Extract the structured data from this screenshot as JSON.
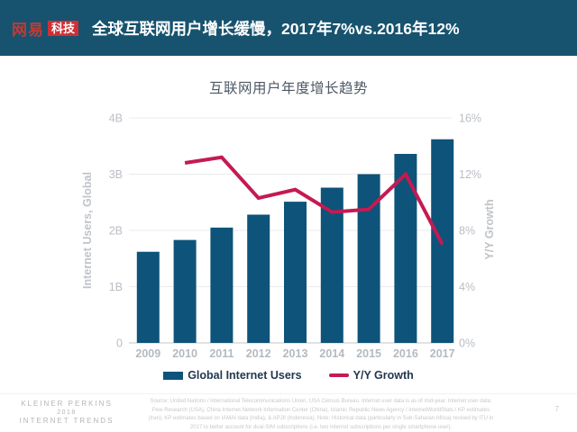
{
  "header": {
    "logo_brand": "网易",
    "logo_sub": "科技",
    "title": "全球互联网用户增长缓慢，2017年7%vs.2016年12%"
  },
  "chart_data": {
    "type": "bar",
    "title": "互联网用户年度增长趋势",
    "categories": [
      "2009",
      "2010",
      "2011",
      "2012",
      "2013",
      "2014",
      "2015",
      "2016",
      "2017"
    ],
    "series": [
      {
        "name": "Global Internet Users",
        "type": "bar",
        "axis": "left",
        "unit": "B",
        "values": [
          1.62,
          1.83,
          2.05,
          2.28,
          2.51,
          2.76,
          3.0,
          3.36,
          3.62
        ]
      },
      {
        "name": "Y/Y Growth",
        "type": "line",
        "axis": "right",
        "unit": "%",
        "values": [
          null,
          12.8,
          13.2,
          10.3,
          10.9,
          9.3,
          9.5,
          12.0,
          7.0
        ]
      }
    ],
    "left_axis": {
      "label": "Internet Users, Global",
      "ticks": [
        "0",
        "1B",
        "2B",
        "3B",
        "4B"
      ],
      "range": [
        0,
        4
      ]
    },
    "right_axis": {
      "label": "Y/Y Growth",
      "ticks": [
        "0%",
        "4%",
        "8%",
        "12%",
        "16%"
      ],
      "range": [
        0,
        16
      ]
    },
    "grid": true,
    "legend_position": "bottom",
    "colors": {
      "bar": "#0E5379",
      "line": "#C41A52"
    }
  },
  "legend": {
    "items": [
      {
        "label": "Global Internet Users"
      },
      {
        "label": "Y/Y Growth"
      }
    ]
  },
  "footer": {
    "brand_lines": [
      "KLEINER PERKINS",
      "2018",
      "INTERNET TRENDS"
    ],
    "source": "Source: United Nations / International Telecommunications Union, USA Census Bureau. Internet user data is as of mid-year. Internet user data: Pew Research (USA), China Internet Network Information Center (China), Islamic Republic News Agency / InternetWorldStats / KP estimates (Iran), KP estimates based on IAMAI data (India), & APJII (Indonesia). Note: Historical data (particularly in Sub-Saharan Africa) revised by ITU in 2017 to better account for dual-SIM subscriptions (i.e. two Internet subscriptions per single smartphone user).",
    "page_number": "7"
  }
}
